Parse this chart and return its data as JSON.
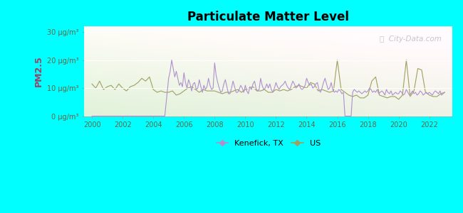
{
  "title": "Particulate Matter Level",
  "ylabel": "PM2.5",
  "ylim": [
    0,
    32
  ],
  "yticks": [
    0,
    10,
    20,
    30
  ],
  "ytick_labels": [
    "0 μg/m³",
    "10 μg/m³",
    "20 μg/m³",
    "30 μg/m³"
  ],
  "xlim": [
    1999.5,
    2023.5
  ],
  "xticks": [
    2000,
    2002,
    2004,
    2006,
    2008,
    2010,
    2012,
    2014,
    2016,
    2018,
    2020,
    2022
  ],
  "background_outer": "#00FFFF",
  "kenefick_color": "#b090cc",
  "us_color": "#a0a060",
  "legend_kenefick": "Kenefick, TX",
  "legend_us": "US",
  "watermark": "ⓘ  City-Data.com",
  "us_x": [
    2000.0,
    2000.25,
    2000.5,
    2000.75,
    2001.0,
    2001.25,
    2001.5,
    2001.75,
    2002.0,
    2002.25,
    2002.5,
    2002.75,
    2003.0,
    2003.25,
    2003.5,
    2003.75,
    2004.0,
    2004.25,
    2004.5,
    2004.75,
    2005.0,
    2005.25,
    2005.5,
    2005.75,
    2006.0,
    2006.25,
    2006.5,
    2006.75,
    2007.0,
    2007.25,
    2007.5,
    2007.75,
    2008.0,
    2008.25,
    2008.5,
    2008.75,
    2009.0,
    2009.25,
    2009.5,
    2009.75,
    2010.0,
    2010.25,
    2010.5,
    2010.75,
    2011.0,
    2011.25,
    2011.5,
    2011.75,
    2012.0,
    2012.25,
    2012.5,
    2012.75,
    2013.0,
    2013.25,
    2013.5,
    2013.75,
    2014.0,
    2014.25,
    2014.5,
    2014.75,
    2015.0,
    2015.25,
    2015.5,
    2015.75,
    2016.0,
    2016.25,
    2016.5,
    2016.75,
    2017.0,
    2017.25,
    2017.5,
    2017.75,
    2018.0,
    2018.25,
    2018.5,
    2018.75,
    2019.0,
    2019.25,
    2019.5,
    2019.75,
    2020.0,
    2020.25,
    2020.5,
    2020.75,
    2021.0,
    2021.25,
    2021.5,
    2021.75,
    2022.0,
    2022.25,
    2022.5,
    2022.75,
    2023.0
  ],
  "us_y": [
    11.5,
    10.0,
    12.5,
    9.5,
    10.5,
    11.0,
    9.5,
    11.5,
    10.0,
    9.0,
    10.5,
    11.0,
    12.0,
    13.5,
    12.5,
    14.0,
    9.5,
    8.5,
    9.0,
    8.5,
    8.5,
    9.0,
    7.5,
    8.0,
    9.0,
    10.0,
    10.5,
    9.5,
    8.5,
    9.5,
    9.0,
    9.0,
    9.0,
    8.5,
    8.0,
    8.5,
    8.5,
    9.0,
    9.5,
    8.5,
    9.5,
    10.0,
    10.5,
    9.0,
    9.0,
    9.5,
    8.5,
    8.5,
    9.5,
    9.0,
    9.5,
    9.0,
    9.5,
    10.5,
    11.0,
    10.5,
    10.0,
    12.0,
    11.5,
    9.0,
    9.5,
    9.0,
    8.5,
    9.0,
    20.0,
    9.5,
    8.5,
    7.5,
    7.0,
    7.5,
    6.5,
    6.5,
    7.5,
    12.5,
    14.0,
    7.5,
    7.0,
    6.5,
    7.0,
    7.0,
    6.0,
    7.5,
    20.0,
    7.0,
    9.0,
    17.0,
    16.5,
    8.5,
    7.5,
    7.0,
    7.0,
    8.0,
    8.5
  ],
  "kenefick_x": [
    2000.0,
    2000.25,
    2000.5,
    2000.75,
    2001.0,
    2001.25,
    2001.5,
    2001.75,
    2002.0,
    2002.25,
    2002.5,
    2002.75,
    2003.0,
    2003.25,
    2003.5,
    2003.75,
    2004.0,
    2004.25,
    2004.5,
    2004.75,
    2005.0,
    2005.1,
    2005.2,
    2005.3,
    2005.4,
    2005.5,
    2005.6,
    2005.7,
    2005.8,
    2005.9,
    2006.0,
    2006.1,
    2006.2,
    2006.3,
    2006.4,
    2006.5,
    2006.6,
    2006.7,
    2006.8,
    2006.9,
    2007.0,
    2007.1,
    2007.2,
    2007.3,
    2007.4,
    2007.5,
    2007.6,
    2007.7,
    2007.8,
    2007.9,
    2008.0,
    2008.1,
    2008.2,
    2008.3,
    2008.4,
    2008.5,
    2008.6,
    2008.7,
    2008.8,
    2008.9,
    2009.0,
    2009.1,
    2009.2,
    2009.3,
    2009.4,
    2009.5,
    2009.6,
    2009.7,
    2009.8,
    2009.9,
    2010.0,
    2010.1,
    2010.2,
    2010.3,
    2010.4,
    2010.5,
    2010.6,
    2010.7,
    2010.8,
    2010.9,
    2011.0,
    2011.1,
    2011.2,
    2011.3,
    2011.4,
    2011.5,
    2011.6,
    2011.7,
    2011.8,
    2011.9,
    2012.0,
    2012.1,
    2012.2,
    2012.3,
    2012.4,
    2012.5,
    2012.6,
    2012.7,
    2012.8,
    2012.9,
    2013.0,
    2013.1,
    2013.2,
    2013.3,
    2013.4,
    2013.5,
    2013.6,
    2013.7,
    2013.8,
    2013.9,
    2014.0,
    2014.1,
    2014.2,
    2014.3,
    2014.4,
    2014.5,
    2014.6,
    2014.7,
    2014.8,
    2014.9,
    2015.0,
    2015.1,
    2015.2,
    2015.3,
    2015.4,
    2015.5,
    2015.6,
    2015.7,
    2015.8,
    2015.9,
    2016.0,
    2016.1,
    2016.2,
    2016.3,
    2016.4,
    2016.5,
    2016.6,
    2016.7,
    2016.8,
    2016.9,
    2017.0,
    2017.1,
    2017.2,
    2017.3,
    2017.4,
    2017.5,
    2017.6,
    2017.7,
    2017.8,
    2017.9,
    2018.0,
    2018.1,
    2018.2,
    2018.3,
    2018.4,
    2018.5,
    2018.6,
    2018.7,
    2018.8,
    2018.9,
    2019.0,
    2019.1,
    2019.2,
    2019.3,
    2019.4,
    2019.5,
    2019.6,
    2019.7,
    2019.8,
    2019.9,
    2020.0,
    2020.1,
    2020.2,
    2020.3,
    2020.4,
    2020.5,
    2020.6,
    2020.7,
    2020.8,
    2020.9,
    2021.0,
    2021.1,
    2021.2,
    2021.3,
    2021.4,
    2021.5,
    2021.6,
    2021.7,
    2021.8,
    2021.9,
    2022.0,
    2022.1,
    2022.2,
    2022.3,
    2022.4,
    2022.5,
    2022.6,
    2022.7,
    2022.8,
    2022.9,
    2023.0
  ],
  "kenefick_y": [
    0.0,
    0.0,
    0.0,
    0.0,
    0.0,
    0.0,
    0.0,
    0.0,
    0.0,
    0.0,
    0.0,
    0.0,
    0.0,
    0.0,
    0.0,
    0.0,
    0.0,
    0.0,
    0.0,
    0.0,
    13.5,
    16.0,
    20.0,
    17.0,
    14.0,
    16.0,
    13.5,
    11.0,
    12.0,
    10.5,
    15.5,
    12.0,
    10.0,
    13.0,
    11.5,
    9.0,
    11.5,
    12.0,
    9.5,
    10.0,
    13.0,
    10.5,
    8.5,
    11.0,
    9.5,
    10.5,
    13.5,
    11.0,
    9.5,
    10.0,
    19.0,
    14.5,
    12.0,
    10.0,
    8.5,
    9.0,
    11.5,
    13.0,
    10.5,
    8.0,
    8.0,
    10.0,
    12.5,
    10.5,
    8.5,
    8.5,
    9.5,
    11.0,
    10.0,
    8.5,
    11.0,
    9.0,
    8.0,
    10.5,
    9.5,
    11.5,
    12.5,
    10.0,
    9.0,
    9.5,
    13.5,
    11.0,
    9.5,
    10.0,
    11.5,
    10.0,
    11.5,
    9.5,
    8.5,
    10.0,
    12.0,
    10.5,
    9.5,
    10.5,
    11.0,
    11.5,
    12.5,
    11.0,
    10.0,
    9.5,
    11.0,
    12.5,
    11.5,
    10.0,
    10.5,
    11.5,
    10.0,
    9.5,
    10.0,
    11.0,
    13.5,
    12.0,
    11.0,
    11.5,
    10.0,
    10.5,
    11.5,
    12.0,
    9.5,
    8.5,
    10.0,
    12.0,
    13.5,
    11.5,
    9.5,
    10.0,
    12.0,
    9.5,
    8.5,
    9.0,
    8.5,
    9.5,
    9.0,
    8.0,
    8.5,
    0.0,
    0.0,
    0.0,
    0.0,
    0.0,
    8.5,
    9.5,
    9.0,
    8.5,
    9.0,
    8.5,
    8.0,
    8.5,
    9.0,
    8.5,
    9.0,
    10.0,
    9.5,
    8.5,
    9.0,
    8.5,
    9.5,
    8.0,
    8.5,
    9.0,
    8.5,
    7.5,
    9.5,
    8.5,
    8.0,
    9.0,
    7.5,
    8.0,
    8.5,
    8.0,
    8.0,
    9.0,
    8.5,
    7.5,
    8.0,
    9.5,
    8.5,
    7.5,
    8.0,
    9.0,
    8.0,
    8.5,
    7.5,
    8.0,
    9.0,
    8.5,
    7.5,
    8.0,
    8.5,
    8.0,
    8.5,
    8.0,
    7.5,
    8.5,
    9.0,
    8.5,
    8.0,
    9.0,
    7.5,
    8.0,
    8.5
  ]
}
